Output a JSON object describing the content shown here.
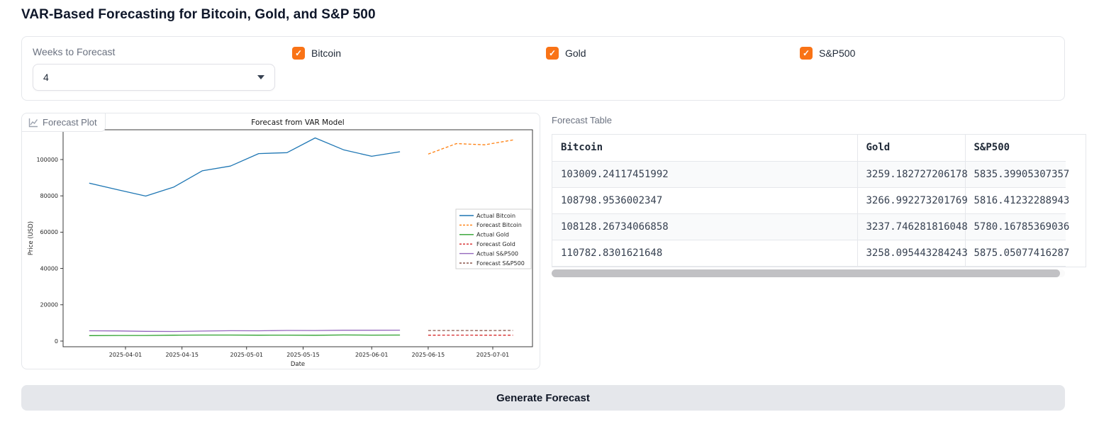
{
  "page": {
    "title": "VAR-Based Forecasting for Bitcoin, Gold, and S&P 500"
  },
  "controls": {
    "weeks_label": "Weeks to Forecast",
    "weeks_value": "4",
    "accent_color": "#f97316",
    "checkboxes": [
      {
        "label": "Bitcoin",
        "checked": true
      },
      {
        "label": "Gold",
        "checked": true
      },
      {
        "label": "S&P500",
        "checked": true
      }
    ]
  },
  "plot_panel": {
    "tab_label": "Forecast Plot"
  },
  "chart_data": {
    "type": "line",
    "title": "Forecast from VAR Model",
    "xlabel": "Date",
    "ylabel": "Price (USD)",
    "ylim": [
      -3000,
      116500
    ],
    "y_ticks": [
      0,
      20000,
      40000,
      60000,
      80000,
      100000
    ],
    "x_ticks": [
      "2025-04-01",
      "2025-04-15",
      "2025-05-01",
      "2025-05-15",
      "2025-06-01",
      "2025-06-15",
      "2025-07-01"
    ],
    "grid": false,
    "legend_position": "center right",
    "series": [
      {
        "name": "Actual Bitcoin",
        "color": "#1f77b4",
        "style": "solid",
        "dates": [
          "2025-03-23",
          "2025-03-30",
          "2025-04-06",
          "2025-04-13",
          "2025-04-20",
          "2025-04-27",
          "2025-05-04",
          "2025-05-11",
          "2025-05-18",
          "2025-05-25",
          "2025-06-01",
          "2025-06-08"
        ],
        "values": [
          87000,
          83400,
          79900,
          84900,
          93800,
          96400,
          103300,
          103800,
          111900,
          105400,
          101800,
          104300
        ]
      },
      {
        "name": "Forecast Bitcoin",
        "color": "#ff7f0e",
        "style": "dashed",
        "dates": [
          "2025-06-15",
          "2025-06-22",
          "2025-06-29",
          "2025-07-06"
        ],
        "values": [
          103009.24117451992,
          108798.9536002347,
          108128.26734066858,
          110782.8301621648
        ]
      },
      {
        "name": "Actual Gold",
        "color": "#2ca02c",
        "style": "solid",
        "dates": [
          "2025-03-23",
          "2025-03-30",
          "2025-04-06",
          "2025-04-13",
          "2025-04-20",
          "2025-04-27",
          "2025-05-04",
          "2025-05-11",
          "2025-05-18",
          "2025-05-25",
          "2025-06-01",
          "2025-06-08"
        ],
        "values": [
          3022,
          3085,
          3081,
          3238,
          3327,
          3319,
          3241,
          3289,
          3204,
          3358,
          3293,
          3310
        ]
      },
      {
        "name": "Forecast Gold",
        "color": "#d62728",
        "style": "dashed",
        "dates": [
          "2025-06-15",
          "2025-06-22",
          "2025-06-29",
          "2025-07-06"
        ],
        "values": [
          3259.182727206178,
          3266.992273201769,
          3237.746281816048,
          3258.095443284243
        ]
      },
      {
        "name": "Actual S&P500",
        "color": "#9467bd",
        "style": "solid",
        "dates": [
          "2025-03-23",
          "2025-03-30",
          "2025-04-06",
          "2025-04-13",
          "2025-04-20",
          "2025-04-27",
          "2025-05-04",
          "2025-05-11",
          "2025-05-18",
          "2025-05-25",
          "2025-06-01",
          "2025-06-08"
        ],
        "values": [
          5668,
          5580,
          5363,
          5283,
          5525,
          5687,
          5660,
          5845,
          5803,
          5959,
          5970,
          6000
        ]
      },
      {
        "name": "Forecast S&P500",
        "color": "#8c564b",
        "style": "dashed",
        "dates": [
          "2025-06-15",
          "2025-06-22",
          "2025-06-29",
          "2025-07-06"
        ],
        "values": [
          5835.39905307357,
          5816.41232288943,
          5780.16785369036,
          5875.05077416287
        ]
      }
    ]
  },
  "table": {
    "label": "Forecast Table",
    "columns": [
      "Bitcoin",
      "Gold",
      "S&P500"
    ],
    "rows": [
      [
        "103009.24117451992",
        "3259.182727206178",
        "5835.39905307357"
      ],
      [
        "108798.9536002347",
        "3266.992273201769",
        "5816.41232288943"
      ],
      [
        "108128.26734066858",
        "3237.746281816048",
        "5780.16785369036"
      ],
      [
        "110782.8301621648",
        "3258.095443284243",
        "5875.05077416287"
      ]
    ]
  },
  "button": {
    "label": "Generate Forecast"
  }
}
